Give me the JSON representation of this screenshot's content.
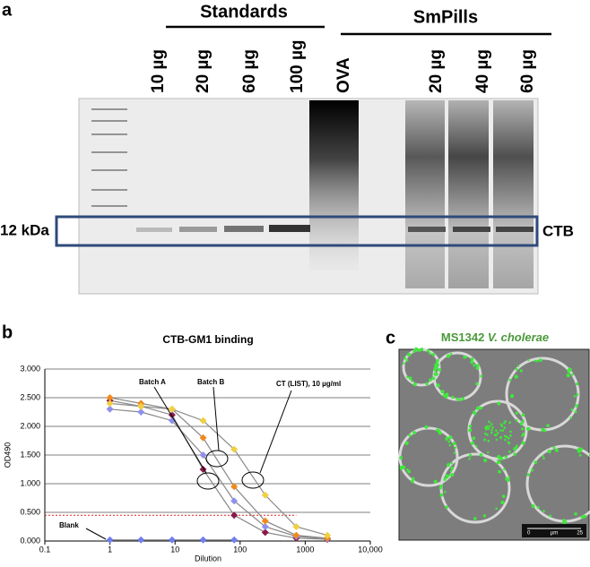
{
  "panel_a": {
    "label": "a",
    "groups": [
      "Standards",
      "SmPills"
    ],
    "lanes": [
      "10 µg",
      "20 µg",
      "60 µg",
      "100 µg",
      "OVA",
      "20 µg",
      "40 µg",
      "60 µg"
    ],
    "marker": "12 kDa",
    "band": "CTB"
  },
  "chart_data": {
    "type": "line",
    "label": "b",
    "title": "CTB-GM1 binding",
    "x_label": "Dilution",
    "y_label": "OD490",
    "log_x": true,
    "grid": true,
    "xlim": [
      0.1,
      10000
    ],
    "ylim": [
      0,
      3
    ],
    "xticks": [
      0.1,
      1,
      10,
      100,
      1000,
      {
        "value": 10000,
        "label": "10,000"
      }
    ],
    "yticks": [
      {
        "value": 0,
        "label": "0.000"
      },
      {
        "value": 0.5,
        "label": "0.500"
      },
      {
        "value": 1,
        "label": "1.000"
      },
      {
        "value": 1.5,
        "label": "1.500"
      },
      {
        "value": 2,
        "label": "2.000"
      },
      {
        "value": 2.5,
        "label": "2.500"
      },
      {
        "value": 3,
        "label": "3.000"
      }
    ],
    "x": [
      1,
      3,
      9,
      27,
      81,
      243,
      729,
      2187
    ],
    "series": [
      {
        "color": "#8b1a4a",
        "values": [
          2.45,
          2.35,
          2.2,
          1.25,
          0.45,
          0.15,
          0.05,
          0.03
        ]
      },
      {
        "color": "#8f8ff0",
        "values": [
          2.3,
          2.25,
          2.1,
          1.5,
          0.7,
          0.25,
          0.08,
          0.04
        ]
      },
      {
        "color": "#f08a1c",
        "values": [
          2.5,
          2.4,
          2.3,
          1.8,
          0.95,
          0.35,
          0.1,
          0.05
        ]
      },
      {
        "color": "#f0d040",
        "values": [
          2.4,
          2.35,
          2.3,
          2.1,
          1.6,
          0.8,
          0.25,
          0.1
        ]
      },
      {
        "color": "#6f7ff0",
        "values": [
          0.02,
          0.02,
          0.02,
          0.02,
          0.02,
          null,
          null,
          null
        ]
      }
    ],
    "cutoff": 0.45,
    "annotations": [
      "Batch A",
      "Batch B",
      "CT (LIST), 10 µg/ml",
      "Blank"
    ]
  },
  "panel_c": {
    "label": "c",
    "title": [
      "MS1342",
      "V. cholerae"
    ],
    "scale_bar": [
      "0",
      "µm",
      "25"
    ]
  }
}
